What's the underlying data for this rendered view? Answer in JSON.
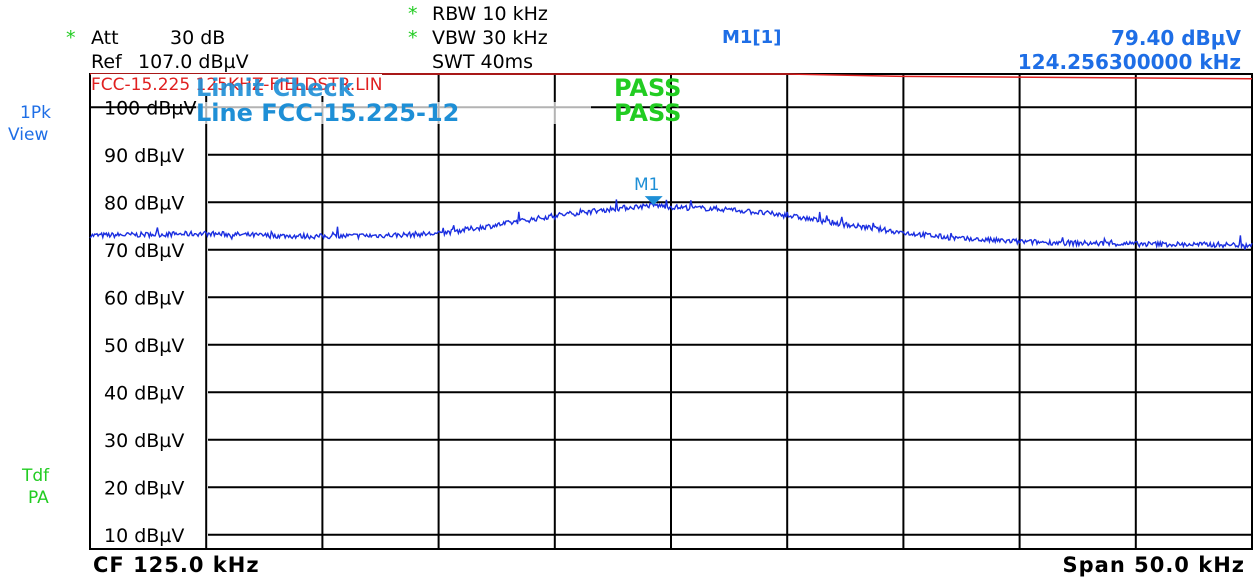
{
  "header": {
    "att_star": "*",
    "att_label": "Att",
    "att_value": "30 dB",
    "ref_label": "Ref",
    "ref_value": "107.0 dBµV",
    "rbw_star": "*",
    "rbw": "RBW 10 kHz",
    "vbw_star": "*",
    "vbw": "VBW 30 kHz",
    "swt": "SWT 40ms",
    "marker_name": "M1[1]",
    "marker_level": "79.40 dBµV",
    "marker_freq": "124.256300000 kHz"
  },
  "left_side": {
    "trace_mode": "1Pk",
    "trace_view": "View",
    "tdf": "Tdf",
    "pa": "PA"
  },
  "footer": {
    "cf": "CF 125.0 kHz",
    "span": "Span 50.0 kHz"
  },
  "overlay": {
    "limit_line_name": "FCC-15.225 125KHZ-FIELDSTR.LIN",
    "limit_check_label": "Limit Check",
    "limit_check_result": "PASS",
    "line_label": "Line FCC-15.225-12",
    "line_result": "PASS",
    "marker_label": "M1"
  },
  "colors": {
    "trace": "#1a2ee0",
    "limit": "#e02020",
    "grid": "#000000",
    "pass": "#22cc22",
    "header_blue": "#1e6ee6"
  },
  "chart_data": {
    "type": "line",
    "xlabel": "",
    "ylabel": "",
    "xlim": [
      100.0,
      150.0
    ],
    "ylim": [
      7.0,
      107.0
    ],
    "ytick_values": [
      100,
      90,
      80,
      70,
      60,
      50,
      40,
      30,
      20,
      10
    ],
    "ytick_labels": [
      "100 dBµV",
      "90 dBµV",
      "80 dBµV",
      "70 dBµV",
      "60 dBµV",
      "50 dBµV",
      "40 dBµV",
      "30 dBµV",
      "20 dBµV",
      "10 dBµV"
    ],
    "grid": true,
    "series": [
      {
        "type": "trace",
        "x": [
          100,
          102.5,
          105,
          107.5,
          110,
          112.5,
          115,
          117.5,
          120,
          122.5,
          124.26,
          125,
          127.5,
          130,
          132.5,
          135,
          137.5,
          140,
          142.5,
          145,
          147.5,
          150
        ],
        "values": [
          73.0,
          73.2,
          73.4,
          73.0,
          72.8,
          73.0,
          73.4,
          75.2,
          77.2,
          78.6,
          79.4,
          79.0,
          78.5,
          77.2,
          75.3,
          73.6,
          72.3,
          71.7,
          71.4,
          71.2,
          71.1,
          71.0
        ]
      },
      {
        "type": "limit",
        "x": [
          100,
          130,
          135,
          150
        ],
        "values": [
          107.0,
          107.0,
          106.5,
          106.0
        ]
      }
    ],
    "marker": {
      "x": 124.2563,
      "y": 79.4
    }
  }
}
